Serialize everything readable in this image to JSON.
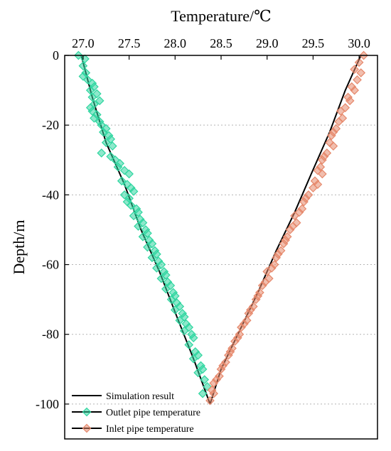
{
  "chart_data": {
    "type": "scatter",
    "xlabel": "Temperature/℃",
    "ylabel": "Depth/m",
    "x_axis_position": "top",
    "xlim": [
      26.8,
      30.2
    ],
    "ylim": [
      -110,
      0
    ],
    "x_ticks": [
      27.0,
      27.5,
      28.0,
      28.5,
      29.0,
      29.5,
      30.0
    ],
    "x_tick_labels": [
      "27.0",
      "27.5",
      "28.0",
      "28.5",
      "29.0",
      "29.5",
      "30.0"
    ],
    "y_ticks": [
      0,
      -20,
      -40,
      -60,
      -80,
      -100
    ],
    "y_tick_labels": [
      "0",
      "-20",
      "-40",
      "-60",
      "-80",
      "-100"
    ],
    "grid": "horizontal dotted",
    "legend_position": "bottom-left",
    "colors": {
      "simulation": "#000000",
      "outlet": "#2fd6a0",
      "inlet": "#e6886b"
    },
    "series": [
      {
        "name": "Simulation result",
        "kind": "line",
        "segments": [
          {
            "x": [
              26.98,
              27.1,
              27.25,
              27.45,
              27.63,
              27.83,
              28.02,
              28.2,
              28.38
            ],
            "y": [
              0,
              -12,
              -25,
              -37,
              -50,
              -62,
              -75,
              -87,
              -100
            ]
          },
          {
            "x": [
              30.02,
              29.85,
              29.68,
              29.48,
              29.3,
              29.1,
              28.9,
              28.7,
              28.5,
              28.38
            ],
            "y": [
              0,
              -10,
              -22,
              -34,
              -45,
              -56,
              -68,
              -79,
              -90,
              -100
            ]
          }
        ]
      },
      {
        "name": "Outlet pipe temperature",
        "kind": "scatter",
        "marker": "diamond",
        "x": [
          26.95,
          27.02,
          27.0,
          27.03,
          27.0,
          27.05,
          27.1,
          27.12,
          27.08,
          27.15,
          27.1,
          27.18,
          27.12,
          27.08,
          27.1,
          27.15,
          27.12,
          27.18,
          27.2,
          27.25,
          27.22,
          27.28,
          27.3,
          27.25,
          27.32,
          27.2,
          27.3,
          27.35,
          27.4,
          27.38,
          27.45,
          27.5,
          27.42,
          27.48,
          27.52,
          27.55,
          27.45,
          27.5,
          27.48,
          27.52,
          27.58,
          27.6,
          27.55,
          27.62,
          27.65,
          27.6,
          27.68,
          27.7,
          27.65,
          27.72,
          27.75,
          27.7,
          27.78,
          27.8,
          27.75,
          27.82,
          27.85,
          27.8,
          27.88,
          27.9,
          27.85,
          27.92,
          27.95,
          27.9,
          27.98,
          28.0,
          27.96,
          28.02,
          28.05,
          28.0,
          28.08,
          28.1,
          28.05,
          28.12,
          28.15,
          28.1,
          28.18,
          28.2,
          28.15,
          28.22,
          28.25,
          28.2,
          28.28,
          28.3,
          28.25,
          28.32,
          28.35,
          28.3
        ],
        "y": [
          0,
          -1,
          -3,
          -5,
          -6,
          -7,
          -8,
          -9,
          -10,
          -11,
          -12,
          -13,
          -14,
          -15,
          -16,
          -17,
          -18,
          -19,
          -20,
          -21,
          -22,
          -23,
          -24,
          -25,
          -26,
          -28,
          -29,
          -30,
          -31,
          -32,
          -33,
          -34,
          -36,
          -37,
          -38,
          -39,
          -40,
          -41,
          -42,
          -43,
          -44,
          -45,
          -46,
          -47,
          -48,
          -49,
          -50,
          -51,
          -52,
          -53,
          -54,
          -55,
          -56,
          -57,
          -58,
          -59,
          -60,
          -61,
          -62,
          -63,
          -64,
          -65,
          -66,
          -67,
          -68,
          -69,
          -70,
          -71,
          -72,
          -73,
          -74,
          -75,
          -76,
          -77,
          -78,
          -79,
          -80,
          -81,
          -83,
          -85,
          -86,
          -87,
          -89,
          -90,
          -91,
          -93,
          -95,
          -97
        ]
      },
      {
        "name": "Inlet pipe temperature",
        "kind": "scatter",
        "marker": "diamond",
        "x": [
          30.05,
          30.0,
          29.95,
          30.02,
          29.98,
          29.92,
          29.95,
          29.88,
          29.9,
          29.85,
          29.8,
          29.82,
          29.78,
          29.75,
          29.72,
          29.7,
          29.68,
          29.72,
          29.65,
          29.62,
          29.6,
          29.58,
          29.55,
          29.6,
          29.52,
          29.55,
          29.5,
          29.45,
          29.42,
          29.4,
          29.38,
          29.35,
          29.3,
          29.32,
          29.28,
          29.25,
          29.22,
          29.2,
          29.18,
          29.15,
          29.12,
          29.1,
          29.08,
          29.05,
          29.0,
          29.02,
          28.98,
          28.95,
          28.92,
          28.9,
          28.88,
          28.85,
          28.82,
          28.8,
          28.78,
          28.75,
          28.72,
          28.7,
          28.68,
          28.65,
          28.62,
          28.6,
          28.58,
          28.55,
          28.52,
          28.5,
          28.48,
          28.45,
          28.42,
          28.4,
          28.42,
          28.38
        ],
        "y": [
          0,
          -2,
          -4,
          -5,
          -7,
          -9,
          -10,
          -12,
          -13,
          -15,
          -16,
          -18,
          -19,
          -21,
          -22,
          -23,
          -25,
          -26,
          -28,
          -29,
          -30,
          -32,
          -33,
          -34,
          -36,
          -37,
          -38,
          -40,
          -41,
          -42,
          -44,
          -45,
          -46,
          -48,
          -49,
          -50,
          -52,
          -53,
          -54,
          -56,
          -57,
          -58,
          -60,
          -61,
          -62,
          -64,
          -65,
          -66,
          -68,
          -69,
          -70,
          -72,
          -73,
          -74,
          -76,
          -77,
          -78,
          -80,
          -81,
          -82,
          -84,
          -85,
          -86,
          -88,
          -89,
          -90,
          -92,
          -93,
          -94,
          -96,
          -97,
          -99
        ]
      }
    ]
  }
}
